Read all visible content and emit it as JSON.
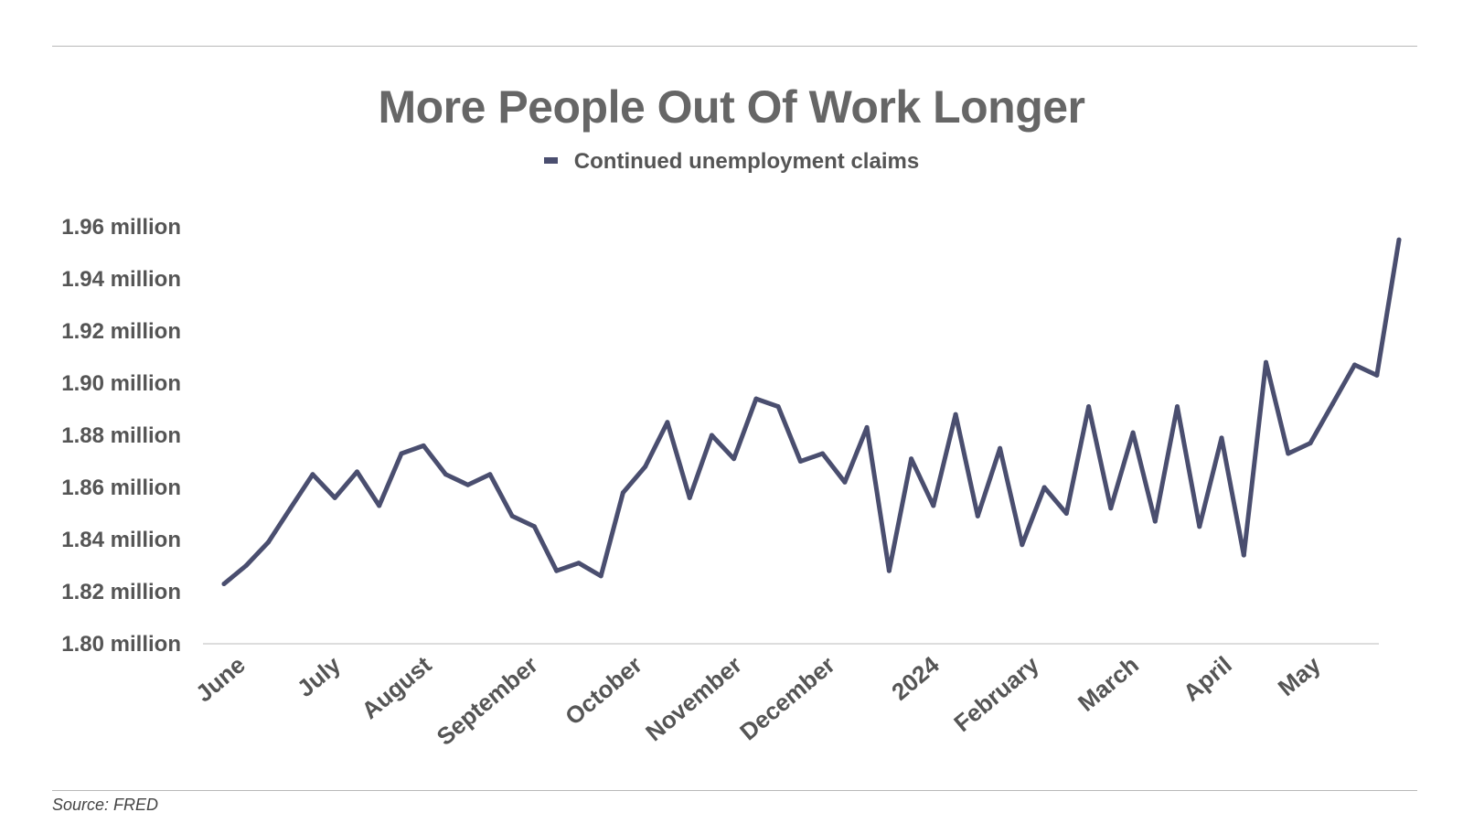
{
  "colors": {
    "series": "#4a4e6f",
    "axis": "#dddddd",
    "text": "#555555"
  },
  "footer": {
    "source": "Source: FRED"
  },
  "chart_data": {
    "type": "line",
    "title": "More People Out Of Work Longer",
    "xlabel": "",
    "ylabel": "",
    "ylim": [
      1.8,
      1.96
    ],
    "yticks": [
      1.8,
      1.82,
      1.84,
      1.86,
      1.88,
      1.9,
      1.92,
      1.94,
      1.96
    ],
    "ytick_labels": [
      "1.80 million",
      "1.82 million",
      "1.84 million",
      "1.86 million",
      "1.88 million",
      "1.90 million",
      "1.92 million",
      "1.94 million",
      "1.96 million"
    ],
    "xtick_labels": [
      "June",
      "July",
      "August",
      "September",
      "October",
      "November",
      "December",
      "2024",
      "February",
      "March",
      "April",
      "May"
    ],
    "xtick_positions": [
      0,
      4.3,
      8.4,
      13.2,
      17.9,
      22.4,
      26.6,
      31.3,
      35.8,
      40.3,
      44.5,
      48.5
    ],
    "legend_position": "top-center",
    "grid": false,
    "series": [
      {
        "name": "Continued unemployment claims",
        "values": [
          1.823,
          1.83,
          1.839,
          1.852,
          1.865,
          1.856,
          1.866,
          1.853,
          1.873,
          1.876,
          1.865,
          1.861,
          1.865,
          1.849,
          1.845,
          1.828,
          1.831,
          1.826,
          1.858,
          1.868,
          1.885,
          1.856,
          1.88,
          1.871,
          1.894,
          1.891,
          1.87,
          1.873,
          1.862,
          1.883,
          1.828,
          1.871,
          1.853,
          1.888,
          1.849,
          1.875,
          1.838,
          1.86,
          1.85,
          1.891,
          1.852,
          1.881,
          1.847,
          1.891,
          1.845,
          1.879,
          1.834,
          1.908,
          1.873,
          1.877,
          1.892,
          1.907,
          1.903,
          1.955
        ]
      }
    ]
  }
}
